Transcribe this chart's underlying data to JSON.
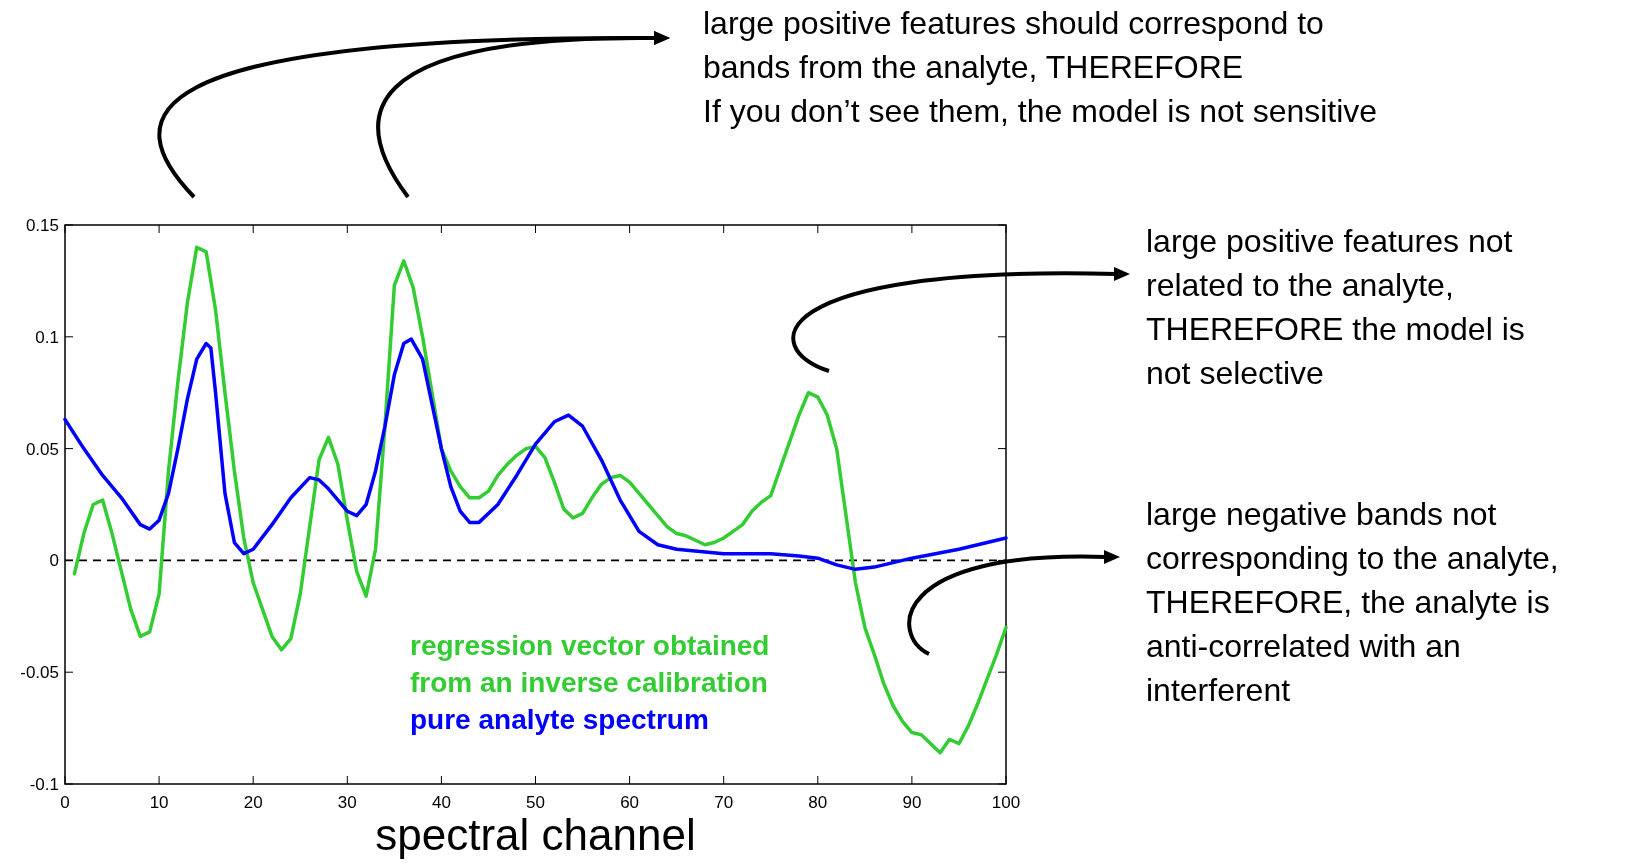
{
  "chart_data": {
    "type": "line",
    "xlabel": "spectral channel",
    "xlim": [
      0,
      100
    ],
    "xticks": [
      0,
      10,
      20,
      30,
      40,
      50,
      60,
      70,
      80,
      90,
      100
    ],
    "ylim": [
      -0.1,
      0.15
    ],
    "yticks": [
      -0.1,
      -0.05,
      0,
      0.05,
      0.1,
      0.15
    ],
    "grid": false,
    "legend": "bottom",
    "line_style": "solid",
    "marker": "none",
    "ref_lines": [
      {
        "axis": "y",
        "value": 0,
        "color": "#000000",
        "line_style": "dashed"
      }
    ],
    "annotations": [
      "large positive features should correspond to\nbands from the analyte, THEREFORE\nIf you don’t see them, the model is not sensitive",
      "large positive features not\nrelated to the analyte,\nTHEREFORE the model is\nnot selective",
      "large negative bands not\ncorresponding to the analyte,\nTHEREFORE, the analyte is\nanti-correlated with an\ninterferent"
    ],
    "series": [
      {
        "name": "regression vector obtained\nfrom an inverse calibration",
        "color": "#33cc33",
        "x": [
          1,
          2,
          3,
          4,
          5,
          6,
          7,
          8,
          9,
          10,
          11,
          12,
          13,
          14,
          15,
          16,
          17,
          18,
          19,
          20,
          21,
          22,
          23,
          24,
          25,
          26,
          27,
          28,
          29,
          30,
          31,
          32,
          33,
          34,
          35,
          36,
          37,
          38,
          39,
          40,
          41,
          42,
          43,
          44,
          45,
          46,
          47,
          48,
          49,
          50,
          51,
          52,
          53,
          54,
          55,
          56,
          57,
          58,
          59,
          60,
          61,
          62,
          63,
          64,
          65,
          66,
          67,
          68,
          69,
          70,
          71,
          72,
          73,
          74,
          75,
          76,
          77,
          78,
          79,
          80,
          81,
          82,
          83,
          84,
          85,
          86,
          87,
          88,
          89,
          90,
          91,
          92,
          93,
          94,
          95,
          96,
          97,
          98,
          99,
          100
        ],
        "values": [
          -0.006,
          0.012,
          0.025,
          0.027,
          0.012,
          -0.005,
          -0.022,
          -0.034,
          -0.032,
          -0.015,
          0.04,
          0.08,
          0.115,
          0.14,
          0.138,
          0.112,
          0.075,
          0.04,
          0.01,
          -0.01,
          -0.022,
          -0.034,
          -0.04,
          -0.035,
          -0.015,
          0.015,
          0.045,
          0.055,
          0.043,
          0.018,
          -0.005,
          -0.016,
          0.005,
          0.06,
          0.123,
          0.134,
          0.122,
          0.1,
          0.075,
          0.05,
          0.04,
          0.033,
          0.028,
          0.028,
          0.031,
          0.038,
          0.043,
          0.047,
          0.05,
          0.051,
          0.046,
          0.035,
          0.023,
          0.019,
          0.021,
          0.028,
          0.034,
          0.037,
          0.038,
          0.035,
          0.03,
          0.025,
          0.02,
          0.015,
          0.012,
          0.011,
          0.009,
          0.007,
          0.008,
          0.01,
          0.013,
          0.016,
          0.022,
          0.026,
          0.029,
          0.041,
          0.053,
          0.065,
          0.075,
          0.073,
          0.065,
          0.05,
          0.02,
          -0.01,
          -0.03,
          -0.042,
          -0.055,
          -0.065,
          -0.072,
          -0.077,
          -0.078,
          -0.082,
          -0.086,
          -0.08,
          -0.082,
          -0.074,
          -0.064,
          -0.053,
          -0.042,
          -0.03
        ]
      },
      {
        "name": "pure analyte spectrum",
        "color": "#0000ff",
        "x": [
          0,
          2,
          4,
          6,
          8,
          9,
          10,
          11,
          12,
          13,
          14,
          15,
          15.5,
          16,
          17,
          18,
          19,
          20,
          22,
          24,
          26,
          27,
          28,
          30,
          31,
          32,
          33,
          34,
          35,
          36,
          36.8,
          38,
          39,
          40,
          41,
          42,
          43,
          44,
          46,
          48,
          50,
          52,
          53.5,
          55,
          57,
          59,
          61,
          63,
          65,
          70,
          75,
          78,
          80,
          82,
          84,
          86,
          90,
          95,
          100
        ],
        "values": [
          0.063,
          0.05,
          0.038,
          0.028,
          0.016,
          0.014,
          0.018,
          0.03,
          0.05,
          0.072,
          0.09,
          0.097,
          0.095,
          0.075,
          0.03,
          0.008,
          0.003,
          0.005,
          0.016,
          0.028,
          0.037,
          0.036,
          0.032,
          0.022,
          0.02,
          0.025,
          0.04,
          0.06,
          0.083,
          0.097,
          0.099,
          0.09,
          0.07,
          0.05,
          0.033,
          0.022,
          0.017,
          0.017,
          0.025,
          0.038,
          0.052,
          0.062,
          0.065,
          0.06,
          0.045,
          0.027,
          0.013,
          0.007,
          0.005,
          0.003,
          0.003,
          0.002,
          0.001,
          -0.002,
          -0.004,
          -0.003,
          0.001,
          0.005,
          0.01
        ]
      }
    ]
  }
}
